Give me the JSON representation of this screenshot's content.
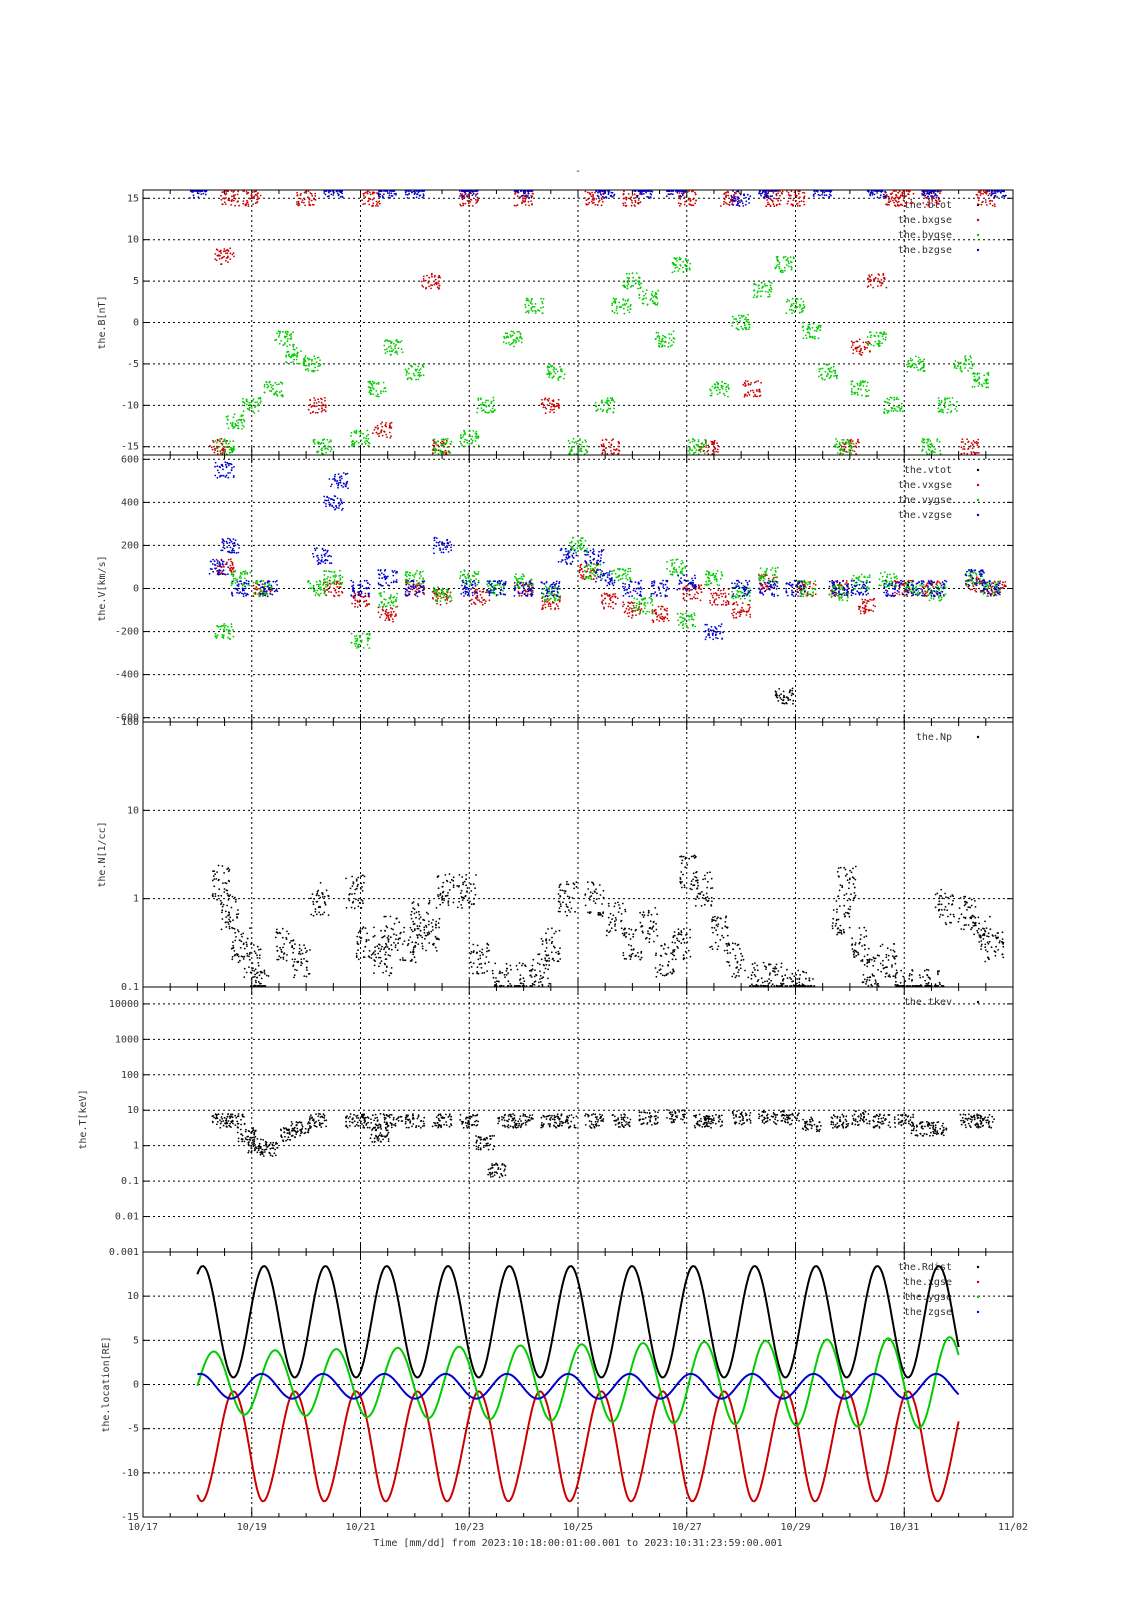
{
  "figure_title": "-",
  "colors": {
    "black": "#000000",
    "red": "#cc0000",
    "green": "#00cc00",
    "blue": "#0000cc"
  },
  "x_axis": {
    "tick_labels": [
      "10/17",
      "10/19",
      "10/21",
      "10/23",
      "10/25",
      "10/27",
      "10/29",
      "10/31",
      "11/02"
    ],
    "tick_days": [
      17,
      19,
      21,
      23,
      25,
      27,
      29,
      31,
      33
    ],
    "range_days": [
      17,
      33
    ],
    "footer": "Time [mm/dd]  from 2023:10:18:00:01:00.001  to  2023:10:31:23:59:00.001"
  },
  "chart_data": [
    {
      "type": "scatter",
      "ylabel": "the.B[nT]",
      "ylim": [
        -16,
        16
      ],
      "yscale": "linear",
      "yticks": [
        15,
        10,
        5,
        0,
        -5,
        -10,
        -15
      ],
      "ytick_labels": [
        "15",
        "10",
        "5",
        "0",
        "-5",
        "-10",
        "-15"
      ],
      "grid": true,
      "legend_position": "top-right",
      "series": [
        {
          "name": "the.btot",
          "color": "#000000"
        },
        {
          "name": "the.bxgse",
          "color": "#cc0000",
          "x": [
            18.4,
            18.5,
            18.6,
            19.0,
            20.0,
            20.2,
            21.2,
            21.4,
            22.3,
            22.5,
            23.0,
            24.0,
            24.5,
            25.3,
            25.6,
            26.0,
            27.0,
            27.4,
            27.8,
            28.2,
            28.6,
            29.0,
            30.0,
            30.2,
            30.5,
            30.8,
            31.0,
            31.5,
            32.2,
            32.5
          ],
          "y": [
            -15,
            8,
            15,
            15,
            15,
            -10,
            15,
            -13,
            5,
            -15,
            15,
            15,
            -10,
            15,
            -15,
            15,
            15,
            -15,
            15,
            -8,
            15,
            15,
            -15,
            -3,
            5,
            15,
            15,
            15,
            -15,
            15
          ]
        },
        {
          "name": "the.bygse",
          "color": "#00cc00",
          "x": [
            18.5,
            18.7,
            19.0,
            19.4,
            19.6,
            19.8,
            20.1,
            20.3,
            21.0,
            21.3,
            21.6,
            22.0,
            22.5,
            23.0,
            23.3,
            23.8,
            24.2,
            24.6,
            25.0,
            25.5,
            25.8,
            26.0,
            26.3,
            26.6,
            26.9,
            27.2,
            27.6,
            28.0,
            28.4,
            28.8,
            29.0,
            29.3,
            29.6,
            29.9,
            30.2,
            30.5,
            30.8,
            31.2,
            31.5,
            31.8,
            32.1,
            32.4
          ],
          "y": [
            -15,
            -12,
            -10,
            -8,
            -2,
            -4,
            -5,
            -15,
            -14,
            -8,
            -3,
            -6,
            -15,
            -14,
            -10,
            -2,
            2,
            -6,
            -15,
            -10,
            2,
            5,
            3,
            -2,
            7,
            -15,
            -8,
            0,
            4,
            7,
            2,
            -1,
            -6,
            -15,
            -8,
            -2,
            -10,
            -5,
            -15,
            -10,
            -5,
            -7
          ]
        },
        {
          "name": "the.bzgse",
          "color": "#0000cc",
          "x": [
            18.0,
            20.5,
            21.5,
            22.0,
            23.0,
            24.0,
            25.5,
            26.2,
            26.8,
            28.0,
            28.5,
            29.5,
            30.5,
            31.5,
            32.7
          ],
          "y": [
            16,
            16,
            16,
            16,
            16,
            16,
            16,
            16,
            16,
            15,
            16,
            16,
            16,
            16,
            16
          ]
        }
      ]
    },
    {
      "type": "scatter",
      "ylabel": "the.V[km/s]",
      "ylim": [
        -620,
        620
      ],
      "yscale": "linear",
      "yticks": [
        600,
        400,
        200,
        0,
        -200,
        -400,
        -600
      ],
      "ytick_labels": [
        "600",
        "400",
        "200",
        "0",
        "-200",
        "-400",
        "-600"
      ],
      "grid": true,
      "legend_position": "top-right",
      "series": [
        {
          "name": "the.vtot",
          "color": "#000000",
          "x": [
            28.8
          ],
          "y": [
            -500
          ]
        },
        {
          "name": "the.vxgse",
          "color": "#cc0000",
          "x": [
            18.5,
            19.2,
            20.5,
            21.0,
            21.5,
            22.0,
            22.5,
            23.2,
            24.0,
            24.5,
            25.2,
            25.6,
            26.0,
            26.5,
            27.1,
            27.6,
            28.0,
            28.5,
            29.2,
            29.8,
            30.3,
            31.0,
            31.5,
            32.3,
            32.7
          ],
          "y": [
            100,
            0,
            0,
            -50,
            -120,
            0,
            -40,
            -40,
            0,
            -60,
            80,
            -60,
            -100,
            -120,
            -20,
            -40,
            -100,
            30,
            0,
            0,
            -80,
            0,
            0,
            20,
            0
          ]
        },
        {
          "name": "the.vygse",
          "color": "#00cc00",
          "x": [
            18.5,
            18.8,
            19.2,
            20.2,
            20.5,
            21.0,
            21.5,
            22.0,
            22.5,
            23.0,
            23.5,
            24.0,
            24.5,
            25.0,
            25.3,
            25.8,
            26.2,
            26.8,
            27.0,
            27.5,
            28.0,
            28.5,
            29.2,
            29.8,
            30.2,
            30.7,
            31.2,
            31.6,
            32.3,
            32.6
          ],
          "y": [
            -200,
            50,
            0,
            0,
            50,
            -240,
            -50,
            50,
            -30,
            50,
            0,
            30,
            -20,
            200,
            80,
            60,
            -80,
            100,
            -150,
            50,
            -20,
            60,
            0,
            -20,
            30,
            40,
            0,
            -20,
            50,
            0
          ]
        },
        {
          "name": "the.vzgse",
          "color": "#0000cc",
          "x": [
            18.4,
            18.5,
            18.6,
            18.8,
            19.3,
            20.3,
            20.5,
            20.6,
            21.0,
            21.5,
            22.0,
            22.5,
            23.0,
            23.5,
            24.0,
            24.5,
            24.8,
            25.3,
            25.5,
            26.0,
            26.5,
            27.0,
            27.5,
            28.0,
            28.5,
            29.0,
            29.8,
            30.2,
            30.8,
            31.2,
            31.6,
            32.3,
            32.6
          ],
          "y": [
            100,
            550,
            200,
            0,
            0,
            150,
            400,
            500,
            0,
            50,
            0,
            200,
            0,
            0,
            0,
            0,
            150,
            150,
            50,
            0,
            0,
            30,
            -200,
            0,
            0,
            0,
            0,
            0,
            0,
            0,
            0,
            50,
            0
          ]
        }
      ]
    },
    {
      "type": "scatter",
      "ylabel": "the.N[1/cc]",
      "ylim": [
        0.1,
        100
      ],
      "yscale": "log",
      "yticks": [
        100,
        10,
        1,
        0.1
      ],
      "ytick_labels": [
        "100",
        "10",
        "1",
        "0.1"
      ],
      "grid": true,
      "legend_position": "top-right",
      "series": [
        {
          "name": "the.Np",
          "color": "#000000",
          "x": [
            18.45,
            18.6,
            18.8,
            19.0,
            19.15,
            19.6,
            19.9,
            20.25,
            20.9,
            21.1,
            21.4,
            21.55,
            21.9,
            22.1,
            22.3,
            22.55,
            22.95,
            23.2,
            23.6,
            24.0,
            24.3,
            24.5,
            24.8,
            25.3,
            25.7,
            26.0,
            26.3,
            26.6,
            26.9,
            27.05,
            27.3,
            27.6,
            27.9,
            28.3,
            28.6,
            28.9,
            29.2,
            29.85,
            29.95,
            30.2,
            30.4,
            30.7,
            31.0,
            31.3,
            31.55,
            31.75,
            32.15,
            32.4,
            32.65
          ],
          "y": [
            1.5,
            0.7,
            0.3,
            0.2,
            0.1,
            0.3,
            0.2,
            1.0,
            1.2,
            0.3,
            0.2,
            0.4,
            0.3,
            0.6,
            0.4,
            1.2,
            1.2,
            0.2,
            0.12,
            0.12,
            0.15,
            0.3,
            1.0,
            1.0,
            0.6,
            0.3,
            0.5,
            0.2,
            0.3,
            2.0,
            1.3,
            0.4,
            0.2,
            0.12,
            0.12,
            0.1,
            0.1,
            0.6,
            1.5,
            0.3,
            0.15,
            0.2,
            0.1,
            0.1,
            0.1,
            0.8,
            0.7,
            0.4,
            0.3
          ]
        }
      ]
    },
    {
      "type": "scatter",
      "ylabel": "the.T[keV]",
      "ylim": [
        0.001,
        30000
      ],
      "yscale": "log",
      "yticks": [
        10000,
        1000,
        100,
        10,
        1,
        0.1,
        0.01,
        0.001
      ],
      "ytick_labels": [
        "10000",
        "1000",
        "100",
        "10",
        "1",
        "0.1",
        "0.01",
        "0.001"
      ],
      "grid": true,
      "legend_position": "top-right",
      "series": [
        {
          "name": "the.tkev",
          "color": "#000000",
          "x": [
            18.45,
            18.7,
            18.9,
            19.1,
            19.3,
            19.7,
            19.9,
            20.2,
            20.9,
            21.2,
            21.35,
            21.6,
            22.0,
            22.5,
            23.0,
            23.3,
            23.5,
            23.7,
            24.0,
            24.5,
            24.8,
            25.3,
            25.8,
            26.3,
            26.8,
            27.3,
            27.5,
            28.0,
            28.5,
            28.9,
            29.3,
            29.8,
            30.2,
            30.6,
            31.0,
            31.3,
            31.6,
            32.2,
            32.5
          ],
          "y": [
            5,
            5,
            2,
            1,
            0.8,
            2,
            3,
            5,
            5,
            5,
            2,
            5,
            5,
            5,
            5,
            1.2,
            0.2,
            5,
            5,
            5,
            5,
            5,
            5,
            6,
            7,
            5,
            5,
            6,
            6,
            6,
            4,
            5,
            6,
            5,
            5,
            3,
            3,
            5,
            5
          ]
        }
      ]
    },
    {
      "type": "line",
      "ylabel": "the.location[RE]",
      "ylim": [
        -15,
        15
      ],
      "yscale": "linear",
      "yticks": [
        10,
        5,
        0,
        -5,
        -10,
        -15
      ],
      "ytick_labels": [
        "10",
        "5",
        "0",
        "-5",
        "-10",
        "-15"
      ],
      "grid": true,
      "legend_position": "top-right",
      "orbit_period_days": 1.1279,
      "x_start_day": 18.0,
      "x_end_day": 32.0,
      "series": [
        {
          "name": "the.Rdist",
          "color": "#000000"
        },
        {
          "name": "the.xgse",
          "color": "#cc0000"
        },
        {
          "name": "the.ygse",
          "color": "#00cc00"
        },
        {
          "name": "the.zgse",
          "color": "#0000cc"
        }
      ]
    }
  ]
}
